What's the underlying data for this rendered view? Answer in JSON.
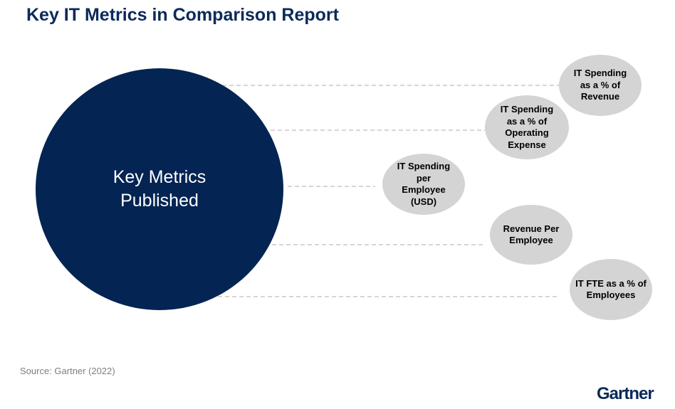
{
  "slide": {
    "title": "Key IT Metrics in Comparison Report",
    "source": "Source: Gartner (2022)",
    "logo_text": "Gartner"
  },
  "diagram": {
    "center_label": "Key Metrics Published",
    "metrics": [
      {
        "label": "IT Spending as a % of Revenue"
      },
      {
        "label": "IT Spending as a % of Operating Expense"
      },
      {
        "label": "IT Spending per Employee (USD)"
      },
      {
        "label": "Revenue Per Employee"
      },
      {
        "label": "IT FTE as a % of Employees"
      }
    ]
  },
  "colors": {
    "title": "#0b2a5a",
    "center_circle": "#042453",
    "metric_circle": "#d4d4d4",
    "connector": "#c8c8c8",
    "source_text": "#7f7f7f"
  }
}
